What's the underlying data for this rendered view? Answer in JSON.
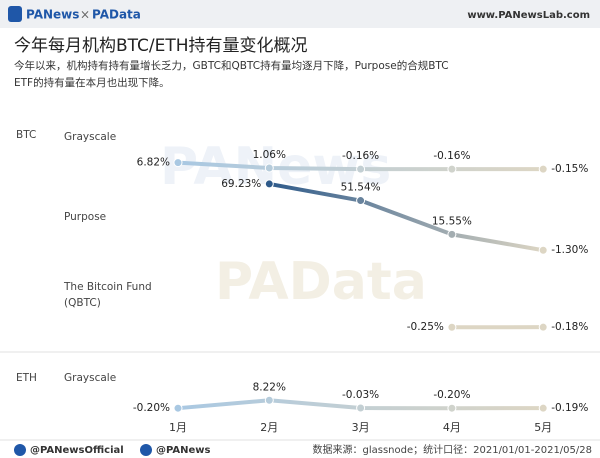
{
  "header": {
    "brand_left": "PANews",
    "brand_sep": "×",
    "brand_right": "PAData",
    "website": "www.PANewsLab.com"
  },
  "footer": {
    "twitter": "@PANewsOfficial",
    "weibo": "@PANews",
    "source": "数据来源：glassnode；统计口径：2021/01/01-2021/05/28"
  },
  "chart_data": {
    "type": "line",
    "title": "今年每月机构BTC/ETH持有量变化概况",
    "subtitle_lines": [
      "今年以来，机构持有持有量增长乏力，GBTC和QBTC持有量均逐月下降，Purpose的合规BTC",
      "ETF的持有量在本月也出现下降。"
    ],
    "categories": [
      "1月",
      "2月",
      "3月",
      "4月",
      "5月"
    ],
    "series": [
      {
        "group": "BTC",
        "name": "Grayscale",
        "color": "#a9c8e2",
        "values": [
          6.82,
          1.06,
          -0.16,
          -0.16,
          -0.15
        ],
        "value_labels": [
          "6.82%",
          "1.06%",
          "-0.16%",
          "-0.16%",
          "-0.15%"
        ]
      },
      {
        "name": "Purpose",
        "color": "#2e5a8a",
        "values": [
          null,
          69.23,
          51.54,
          15.55,
          -1.3
        ],
        "value_labels": [
          null,
          "69.23%",
          "51.54%",
          "15.55%",
          "-1.30%"
        ]
      },
      {
        "name": "The Bitcoin Fund (QBTC)",
        "color": "#ddd6c4",
        "values": [
          null,
          null,
          null,
          -0.25,
          -0.18
        ],
        "value_labels": [
          null,
          null,
          null,
          "-0.25%",
          "-0.18%"
        ]
      },
      {
        "group": "ETH",
        "name": "Grayscale",
        "color": "#a9c8e2",
        "values": [
          -0.2,
          8.22,
          -0.03,
          -0.2,
          -0.19
        ],
        "value_labels": [
          "-0.20%",
          "8.22%",
          "-0.03%",
          "-0.20%",
          "-0.19%"
        ]
      }
    ]
  }
}
